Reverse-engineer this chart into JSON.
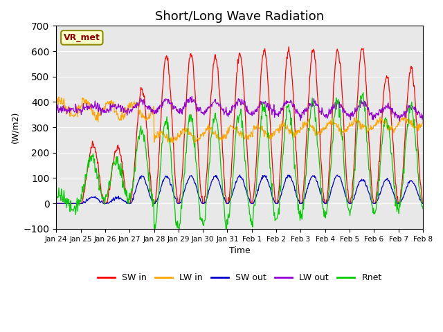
{
  "title": "Short/Long Wave Radiation",
  "ylabel": "(W/m2)",
  "xlabel": "Time",
  "ylim": [
    -100,
    700
  ],
  "annotation": "VR_met",
  "x_tick_labels": [
    "Jan 24",
    "Jan 25",
    "Jan 26",
    "Jan 27",
    "Jan 28",
    "Jan 29",
    "Jan 30",
    "Jan 31",
    "Feb 1",
    "Feb 2",
    "Feb 3",
    "Feb 4",
    "Feb 5",
    "Feb 6",
    "Feb 7",
    "Feb 8"
  ],
  "legend_labels": [
    "SW in",
    "LW in",
    "SW out",
    "LW out",
    "Rnet"
  ],
  "colors": {
    "SW_in": "#ff0000",
    "LW_in": "#ffa500",
    "SW_out": "#0000cd",
    "LW_out": "#9400d3",
    "Rnet": "#00cc00"
  },
  "background_color": "#e8e8e8",
  "title_fontsize": 13,
  "n_days": 15,
  "pts_per_day": 48
}
